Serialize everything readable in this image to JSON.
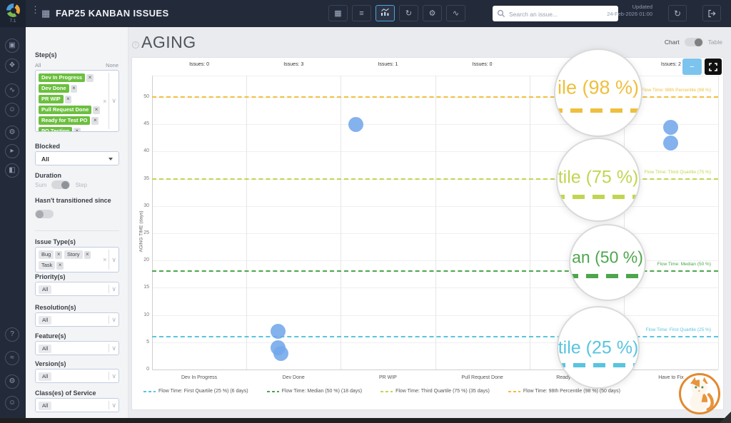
{
  "topbar": {
    "version": "7.1",
    "title": "FAP25 KANBAN ISSUES",
    "icons": [
      {
        "name": "kanban-board",
        "active": false
      },
      {
        "name": "list-view",
        "active": false
      },
      {
        "name": "analytics-chart",
        "active": true
      },
      {
        "name": "cycle-flow",
        "active": false
      },
      {
        "name": "report-settings",
        "active": false
      },
      {
        "name": "flow-metrics",
        "active": false
      }
    ],
    "search_placeholder": "Search an issue...",
    "updated_label": "Updated",
    "updated_value": "24-Feb-2026 01:00"
  },
  "sidebar": {
    "top_icons": [
      "portfolio",
      "modules",
      "flow-metrics",
      "team",
      "forecast-settings",
      "simulation-settings",
      "splitter"
    ],
    "bottom_icons": [
      "help",
      "announcements",
      "settings",
      "account"
    ]
  },
  "filters": {
    "steps": {
      "label": "Step(s)",
      "all_label": "All",
      "none_label": "None",
      "tags": [
        "Dev In Progress",
        "Dev Done",
        "PR WIP",
        "Pull Request Done",
        "Ready for Test PO",
        "PO Testing",
        "Have to Fix"
      ]
    },
    "blocked": {
      "label": "Blocked",
      "value": "All"
    },
    "duration": {
      "label": "Duration",
      "options": [
        "Sum",
        "Step"
      ]
    },
    "hasnt": {
      "label": "Hasn't transitioned since"
    },
    "issue_types": {
      "label": "Issue Type(s)",
      "tags": [
        "Bug",
        "Story",
        "Task"
      ]
    },
    "selects": [
      {
        "label": "Priority(s)",
        "value": "All"
      },
      {
        "label": "Resolution(s)",
        "value": "All"
      },
      {
        "label": "Feature(s)",
        "value": "All"
      },
      {
        "label": "Version(s)",
        "value": "All"
      },
      {
        "label": "Class(es) of Service",
        "value": "All"
      }
    ]
  },
  "main": {
    "title": "AGING",
    "view_toggle": {
      "chart": "Chart",
      "table": "Table"
    },
    "zoom_out_label": "−"
  },
  "chart_data": {
    "type": "scatter",
    "title": "AGING",
    "xlabel": "",
    "ylabel": "AGING TIME (days)",
    "ylim": [
      0,
      53
    ],
    "yticks": [
      0,
      5,
      10,
      15,
      20,
      25,
      30,
      35,
      40,
      45,
      50
    ],
    "grid": true,
    "issues_prefix": "Issues: ",
    "columns": [
      {
        "name": "Dev In Progress",
        "issues": 0,
        "points_days": []
      },
      {
        "name": "Dev Done",
        "issues": 3,
        "points_days": [
          7,
          4,
          3
        ]
      },
      {
        "name": "PR WIP",
        "issues": 1,
        "points_days": [
          45
        ]
      },
      {
        "name": "Pull Request Done",
        "issues": 0,
        "points_days": []
      },
      {
        "name": "Ready for Test PO",
        "issues": 0,
        "points_days": []
      },
      {
        "name": "Have to Fix",
        "issues": 2,
        "points_days": [
          44.5,
          41.5
        ]
      }
    ],
    "point_color": "#72a7ea",
    "percentile_lines": [
      {
        "label": "Flow Time: First Quartile (25 %)",
        "days": 6,
        "color": "#58c5df"
      },
      {
        "label": "Flow Time: Median (50 %)",
        "days": 18,
        "color": "#4da64d"
      },
      {
        "label": "Flow Time: Third Quartile (75 %)",
        "days": 35,
        "color": "#c2d551"
      },
      {
        "label": "Flow Time: 98th Percentile (98 %)",
        "days": 50,
        "color": "#efbf3e"
      }
    ],
    "legend_position": "bottom",
    "legend": [
      {
        "label": "Flow Time: First Quartile (25 %) (6 days)",
        "color": "#58c5df"
      },
      {
        "label": "Flow Time: Median (50 %) (18 days)",
        "color": "#4da64d"
      },
      {
        "label": "Flow Time: Third Quartile (75 %) (35 days)",
        "color": "#c2d551"
      },
      {
        "label": "Flow Time: 98th Percentile (98 %) (50 days)",
        "color": "#efbf3e"
      }
    ]
  },
  "magnifiers": [
    {
      "text": "ile (98 %)",
      "color": "#efbf3e"
    },
    {
      "text": "tile (75 %)",
      "color": "#c2d551"
    },
    {
      "text": "an (50 %)",
      "color": "#4da64d"
    },
    {
      "text": "tile (25 %)",
      "color": "#58c5df"
    }
  ]
}
